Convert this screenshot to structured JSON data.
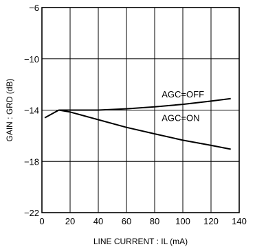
{
  "chart_data": {
    "type": "line",
    "xlabel": "LINE CURRENT : IL (mA)",
    "ylabel": "GAIN : GRD (dB)",
    "xlim": [
      0,
      140
    ],
    "ylim": [
      -22,
      -6
    ],
    "x_ticks": [
      "0",
      "20",
      "40",
      "60",
      "80",
      "100",
      "120",
      "140"
    ],
    "y_ticks": [
      "-6",
      "-10",
      "-14",
      "-18",
      "-22"
    ],
    "grid": true,
    "series": [
      {
        "name": "AGC=OFF",
        "x": [
          2,
          7,
          12,
          20,
          40,
          60,
          80,
          100,
          120,
          134
        ],
        "y": [
          -14.6,
          -14.3,
          -14.0,
          -14.0,
          -14.0,
          -13.9,
          -13.75,
          -13.55,
          -13.3,
          -13.1
        ]
      },
      {
        "name": "AGC=ON",
        "x": [
          12,
          20,
          30,
          40,
          60,
          80,
          100,
          120,
          134
        ],
        "y": [
          -14.0,
          -14.15,
          -14.45,
          -14.75,
          -15.35,
          -15.85,
          -16.35,
          -16.75,
          -17.05
        ]
      }
    ],
    "annotations": [
      {
        "text": "AGC=OFF",
        "x": 85,
        "y": -13.0
      },
      {
        "text": "AGC=ON",
        "x": 85,
        "y": -14.85
      }
    ]
  }
}
